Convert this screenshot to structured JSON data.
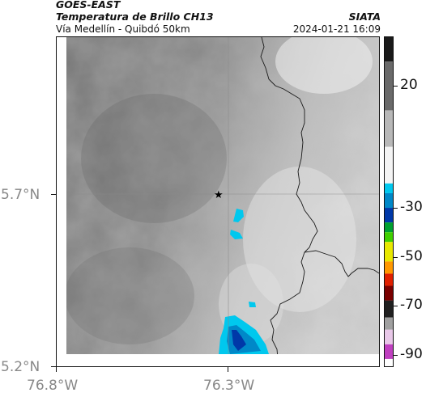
{
  "header": {
    "satellite": "GOES-EAST",
    "product": "Temperatura de Brillo CH13",
    "route": "Vía Medellín - Quibdó 50km",
    "source": "SIATA",
    "datetime": "2024-01-21 16:09"
  },
  "axes": {
    "y_labels": [
      "5.7°N",
      "5.2°N"
    ],
    "x_labels": [
      "76.8°W",
      "76.3°W"
    ],
    "extent": {
      "lon_min": -76.8,
      "lon_max": -75.9,
      "lat_min": 5.2,
      "lat_max": 6.1
    },
    "gridlines": {
      "lon": -76.3,
      "lat": 5.7
    }
  },
  "marker": {
    "type": "star",
    "lon": -76.34,
    "lat": 5.7
  },
  "colorbar": {
    "tick_labels": [
      "20",
      "-30",
      "-50",
      "-70",
      "-90"
    ],
    "ticks": [
      20,
      -30,
      -50,
      -70,
      -90
    ],
    "range": [
      -95,
      40
    ],
    "segments": [
      {
        "from": 40,
        "to": 30,
        "color": "#1a1a1a"
      },
      {
        "from": 30,
        "to": 10,
        "color": "#6a6a6a"
      },
      {
        "from": 10,
        "to": -5,
        "color": "#b8b8b8"
      },
      {
        "from": -5,
        "to": -20,
        "color": "#f4f4f4"
      },
      {
        "from": -20,
        "to": -24,
        "color": "#00c8ee"
      },
      {
        "from": -24,
        "to": -30,
        "color": "#0088c8"
      },
      {
        "from": -30,
        "to": -36,
        "color": "#0038a8"
      },
      {
        "from": -36,
        "to": -40,
        "color": "#00a030"
      },
      {
        "from": -40,
        "to": -44,
        "color": "#40d000"
      },
      {
        "from": -44,
        "to": -52,
        "color": "#e8e800"
      },
      {
        "from": -52,
        "to": -57,
        "color": "#ff9800"
      },
      {
        "from": -57,
        "to": -62,
        "color": "#e02000"
      },
      {
        "from": -62,
        "to": -68,
        "color": "#7a0000"
      },
      {
        "from": -68,
        "to": -75,
        "color": "#202020"
      },
      {
        "from": -75,
        "to": -80,
        "color": "#a0a0a0"
      },
      {
        "from": -80,
        "to": -86,
        "color": "#e8c8e8"
      },
      {
        "from": -86,
        "to": -92,
        "color": "#c040c0"
      },
      {
        "from": -92,
        "to": -95,
        "color": "#ffffff"
      }
    ]
  }
}
